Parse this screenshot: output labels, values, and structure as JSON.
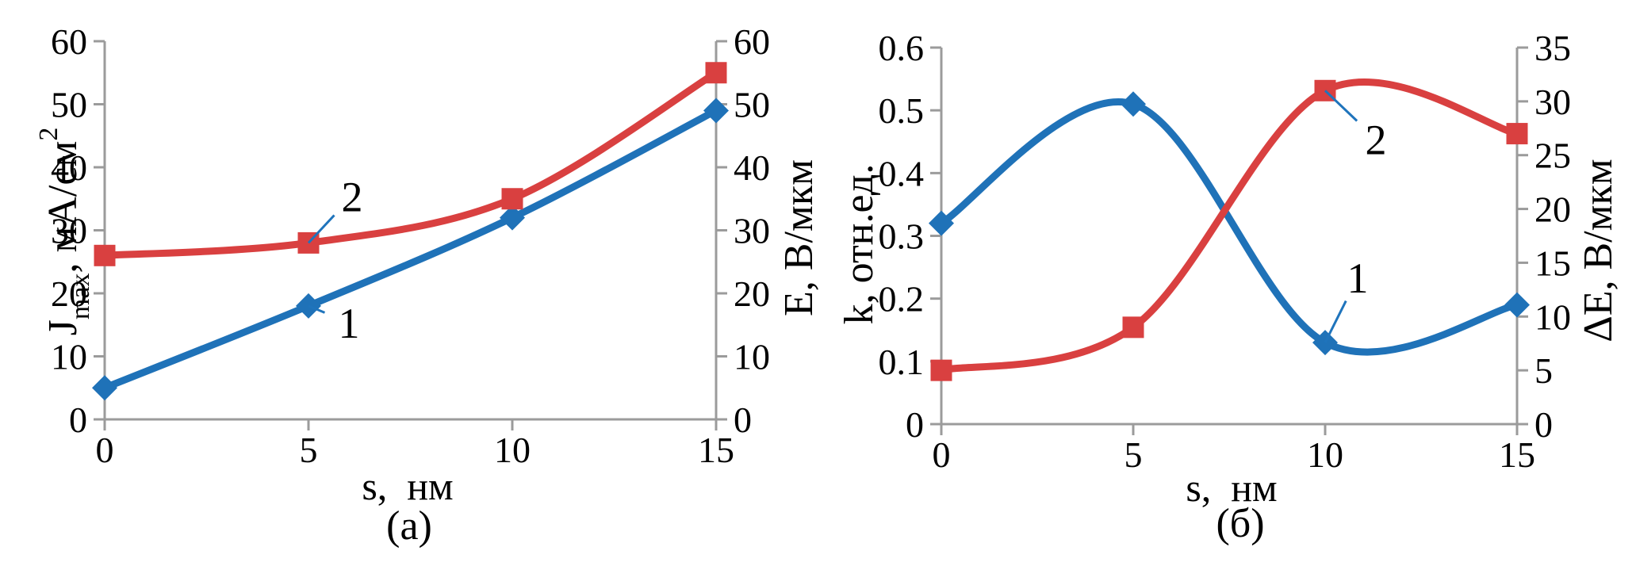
{
  "figure": {
    "background": "#ffffff"
  },
  "style": {
    "axis_color": "#9b9b9b",
    "text_color": "#000000",
    "leader_color": "#1f74bc",
    "series1_color": "#1f72b8",
    "series2_color": "#d94040"
  },
  "chart_data": [
    {
      "type": "line",
      "panel": "a",
      "caption": "(a)",
      "xlabel": "s,  нм",
      "x": [
        0,
        5,
        10,
        15
      ],
      "xlim": [
        0,
        15
      ],
      "x_ticks": [
        0,
        5,
        10,
        15
      ],
      "grid": false,
      "smooth": true,
      "legend": "none (numbered annotations 1 and 2)",
      "axes": {
        "left": {
          "title": "Jmax, мА/см2",
          "title_parts": [
            {
              "t": "J"
            },
            {
              "t": "max",
              "shift": "sub"
            },
            {
              "t": ", мА/см"
            },
            {
              "t": "2",
              "shift": "sup"
            }
          ],
          "range": [
            0,
            60
          ],
          "step": 10,
          "decimals": 0
        },
        "right": {
          "title": "E, В/мкм",
          "title_parts": [
            {
              "t": "E, В/мкм"
            }
          ],
          "range": [
            0,
            60
          ],
          "step": 10,
          "decimals": 0
        }
      },
      "series": [
        {
          "name": "1",
          "axis": "left",
          "color": "#1f72b8",
          "marker": "diamond",
          "values": [
            5,
            18,
            32,
            49
          ],
          "annotation": {
            "text": "1",
            "at_index": 1,
            "dx": 51,
            "dy": 21
          }
        },
        {
          "name": "2",
          "axis": "right",
          "color": "#d94040",
          "marker": "square",
          "values": [
            26,
            28,
            35,
            55
          ],
          "annotation": {
            "text": "2",
            "at_index": 1,
            "dx": 55,
            "dy": -59
          }
        }
      ]
    },
    {
      "type": "line",
      "panel": "б",
      "caption": "(б)",
      "xlabel": "s,  нм",
      "x": [
        0,
        5,
        10,
        15
      ],
      "xlim": [
        0,
        15
      ],
      "x_ticks": [
        0,
        5,
        10,
        15
      ],
      "grid": false,
      "smooth": true,
      "legend": "none (numbered annotations 1 and 2)",
      "axes": {
        "left": {
          "title": "k, отн.ед.",
          "title_parts": [
            {
              "t": "k, отн.ед."
            }
          ],
          "range": [
            0,
            0.6
          ],
          "step": 0.1,
          "decimals": 1
        },
        "right": {
          "title": "ΔE, В/мкм",
          "title_parts": [
            {
              "t": "ΔE, В/мкм"
            }
          ],
          "range": [
            0,
            35
          ],
          "step": 5,
          "decimals": 0
        }
      },
      "series": [
        {
          "name": "1",
          "axis": "left",
          "color": "#1f72b8",
          "marker": "diamond",
          "values": [
            0.32,
            0.51,
            0.13,
            0.19
          ],
          "annotation": {
            "text": "1",
            "at_index": 2,
            "dx": 41,
            "dy": -82
          }
        },
        {
          "name": "2",
          "axis": "right",
          "color": "#d94040",
          "marker": "square",
          "values": [
            5,
            9,
            31,
            27
          ],
          "annotation": {
            "text": "2",
            "at_index": 2,
            "dx": 64,
            "dy": 61
          }
        }
      ]
    }
  ]
}
